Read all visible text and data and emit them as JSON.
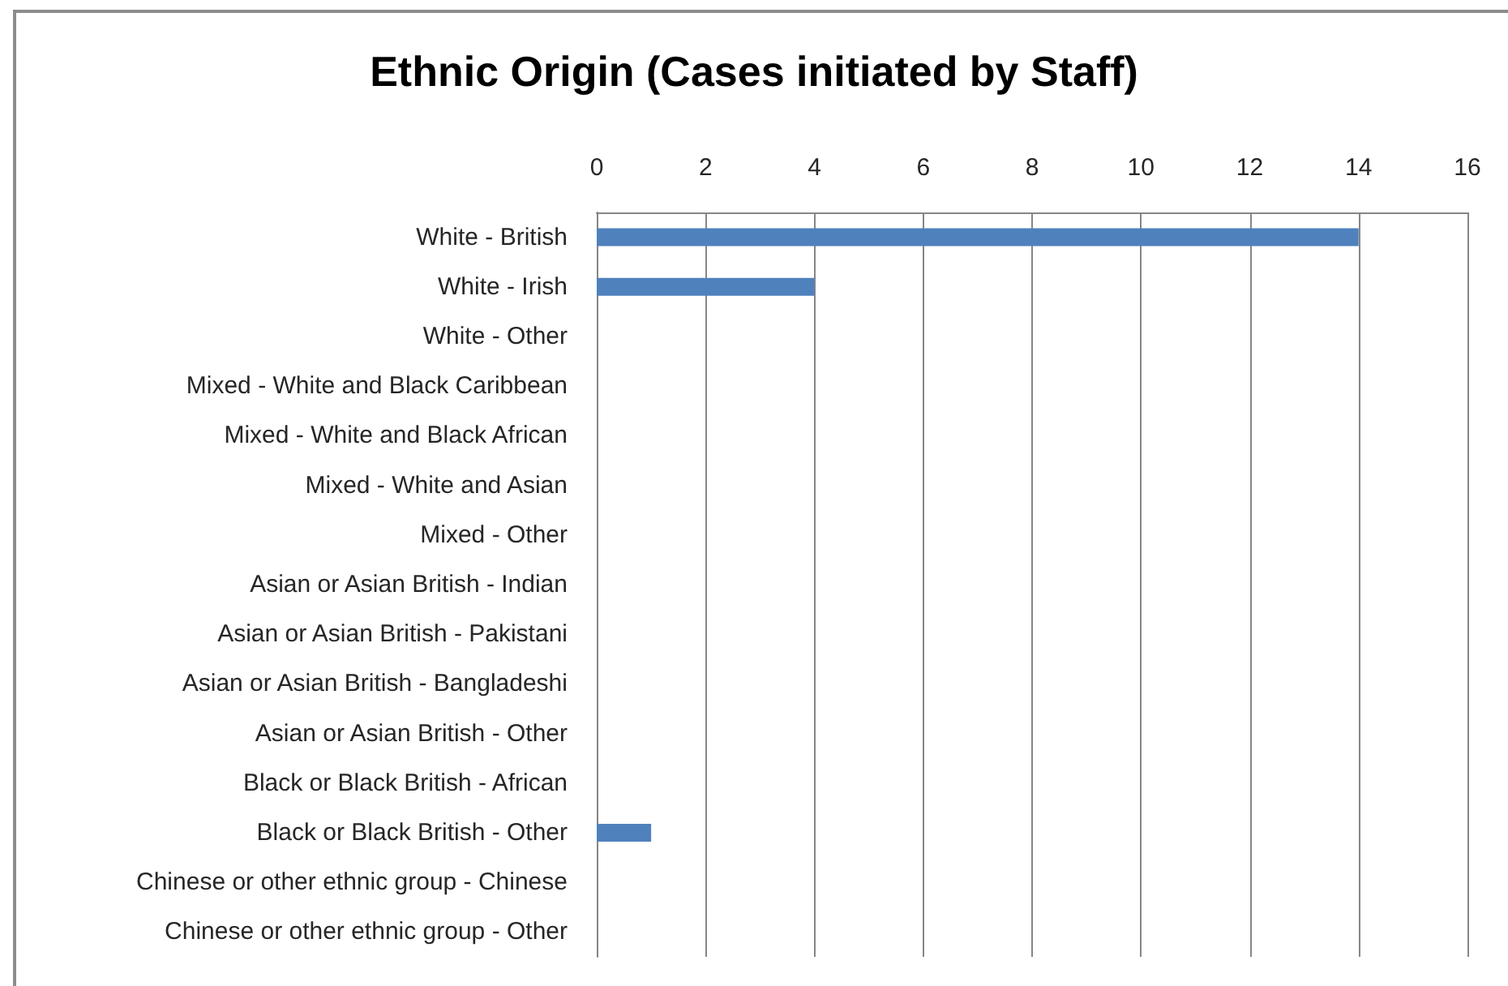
{
  "chart_data": {
    "type": "bar",
    "orientation": "horizontal",
    "title": "Ethnic Origin (Cases initiated by Staff)",
    "categories": [
      "White - British",
      "White - Irish",
      "White - Other",
      "Mixed - White and Black Caribbean",
      "Mixed - White and Black African",
      "Mixed - White and Asian",
      "Mixed - Other",
      "Asian or Asian British - Indian",
      "Asian or Asian British - Pakistani",
      "Asian or Asian British - Bangladeshi",
      "Asian or Asian British - Other",
      "Black or Black British - African",
      "Black or Black British - Other",
      "Chinese or other ethnic group - Chinese",
      "Chinese or other ethnic group - Other"
    ],
    "values": [
      14,
      4,
      0,
      0,
      0,
      0,
      0,
      0,
      0,
      0,
      0,
      0,
      1,
      0,
      0
    ],
    "color": "#4f81bd",
    "xlim": [
      0,
      16
    ],
    "xticks": [
      0,
      2,
      4,
      6,
      8,
      10,
      12,
      14,
      16
    ],
    "grid": "x"
  }
}
